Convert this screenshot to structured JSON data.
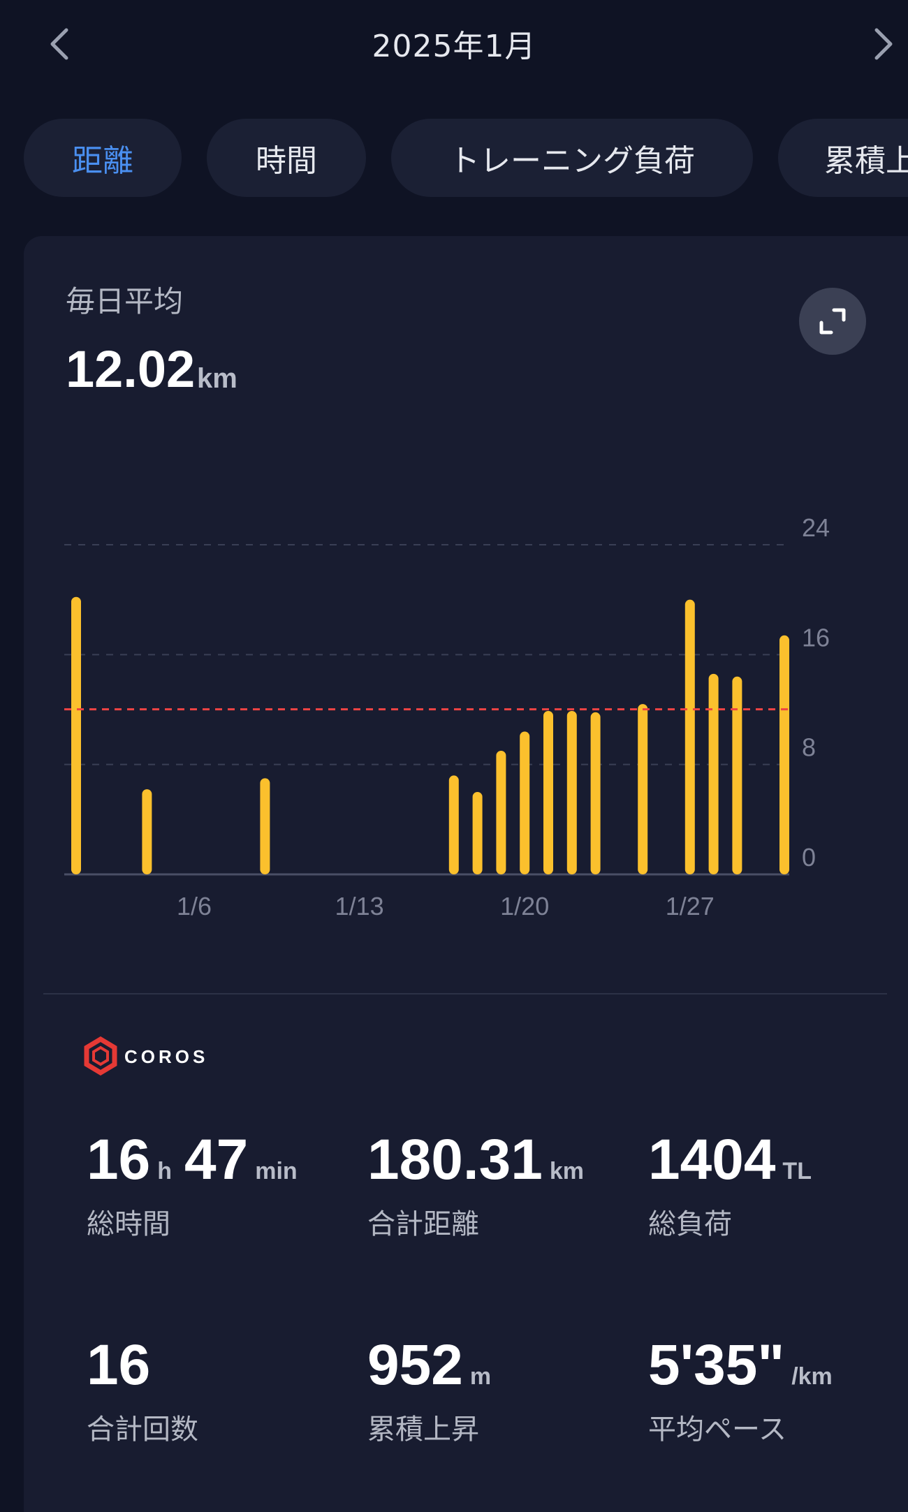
{
  "header": {
    "title": "2025年1月",
    "prev_icon": "chevron-left-icon",
    "next_icon": "chevron-right-icon"
  },
  "tabs": [
    {
      "label": "距離",
      "active": true
    },
    {
      "label": "時間",
      "active": false
    },
    {
      "label": "トレーニング負荷",
      "active": false
    },
    {
      "label": "累積上昇",
      "active": false
    }
  ],
  "summary": {
    "label": "毎日平均",
    "value": "12.02",
    "unit": "km",
    "expand_icon": "expand-icon"
  },
  "chart_data": {
    "type": "bar",
    "x_ticks": [
      "1/6",
      "1/13",
      "1/20",
      "1/27"
    ],
    "y_ticks": [
      "0",
      "8",
      "16",
      "24"
    ],
    "ylim": [
      0,
      24
    ],
    "average_line": 12.02,
    "days": [
      1,
      4,
      9,
      17,
      18,
      19,
      20,
      21,
      22,
      23,
      25,
      27,
      28,
      29,
      31
    ],
    "values": [
      20.2,
      6.2,
      7.0,
      7.2,
      6.0,
      9.0,
      10.4,
      11.9,
      11.9,
      11.8,
      12.4,
      20.0,
      14.6,
      14.4,
      17.4
    ],
    "colors": {
      "bar": "#fbc02d",
      "average": "#ef4444",
      "grid": "#3a3f55",
      "axis": "#4a4f66",
      "tick": "#7e8296"
    }
  },
  "brand": {
    "name": "COROS",
    "color": "#e53935"
  },
  "stats": [
    {
      "parts": [
        {
          "v": "16",
          "u": "h"
        },
        {
          "v": "47",
          "u": "min"
        }
      ],
      "label": "総時間"
    },
    {
      "parts": [
        {
          "v": "180.31",
          "u": "km"
        }
      ],
      "label": "合計距離"
    },
    {
      "parts": [
        {
          "v": "1404",
          "u": "TL"
        }
      ],
      "label": "総負荷"
    },
    {
      "parts": [
        {
          "v": "16",
          "u": ""
        }
      ],
      "label": "合計回数"
    },
    {
      "parts": [
        {
          "v": "952",
          "u": "m"
        }
      ],
      "label": "累積上昇"
    },
    {
      "parts": [
        {
          "v": "5'35\"",
          "u": "/km"
        }
      ],
      "label": "平均ペース"
    }
  ]
}
